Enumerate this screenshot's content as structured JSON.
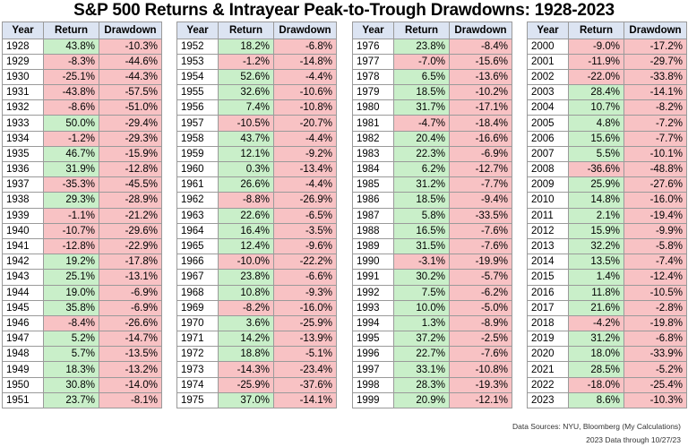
{
  "title": "S&P 500 Returns & Intrayear Peak-to-Trough Drawdowns: 1928-2023",
  "headers": {
    "year": "Year",
    "ret": "Return",
    "dd": "Drawdown"
  },
  "colors": {
    "header": "#dce4f2",
    "positive": "#c9efc9",
    "negative": "#f8c2c4"
  },
  "columns": [
    [
      [
        "1928",
        "43.8%",
        "-10.3%"
      ],
      [
        "1929",
        "-8.3%",
        "-44.6%"
      ],
      [
        "1930",
        "-25.1%",
        "-44.3%"
      ],
      [
        "1931",
        "-43.8%",
        "-57.5%"
      ],
      [
        "1932",
        "-8.6%",
        "-51.0%"
      ],
      [
        "1933",
        "50.0%",
        "-29.4%"
      ],
      [
        "1934",
        "-1.2%",
        "-29.3%"
      ],
      [
        "1935",
        "46.7%",
        "-15.9%"
      ],
      [
        "1936",
        "31.9%",
        "-12.8%"
      ],
      [
        "1937",
        "-35.3%",
        "-45.5%"
      ],
      [
        "1938",
        "29.3%",
        "-28.9%"
      ],
      [
        "1939",
        "-1.1%",
        "-21.2%"
      ],
      [
        "1940",
        "-10.7%",
        "-29.6%"
      ],
      [
        "1941",
        "-12.8%",
        "-22.9%"
      ],
      [
        "1942",
        "19.2%",
        "-17.8%"
      ],
      [
        "1943",
        "25.1%",
        "-13.1%"
      ],
      [
        "1944",
        "19.0%",
        "-6.9%"
      ],
      [
        "1945",
        "35.8%",
        "-6.9%"
      ],
      [
        "1946",
        "-8.4%",
        "-26.6%"
      ],
      [
        "1947",
        "5.2%",
        "-14.7%"
      ],
      [
        "1948",
        "5.7%",
        "-13.5%"
      ],
      [
        "1949",
        "18.3%",
        "-13.2%"
      ],
      [
        "1950",
        "30.8%",
        "-14.0%"
      ],
      [
        "1951",
        "23.7%",
        "-8.1%"
      ]
    ],
    [
      [
        "1952",
        "18.2%",
        "-6.8%"
      ],
      [
        "1953",
        "-1.2%",
        "-14.8%"
      ],
      [
        "1954",
        "52.6%",
        "-4.4%"
      ],
      [
        "1955",
        "32.6%",
        "-10.6%"
      ],
      [
        "1956",
        "7.4%",
        "-10.8%"
      ],
      [
        "1957",
        "-10.5%",
        "-20.7%"
      ],
      [
        "1958",
        "43.7%",
        "-4.4%"
      ],
      [
        "1959",
        "12.1%",
        "-9.2%"
      ],
      [
        "1960",
        "0.3%",
        "-13.4%"
      ],
      [
        "1961",
        "26.6%",
        "-4.4%"
      ],
      [
        "1962",
        "-8.8%",
        "-26.9%"
      ],
      [
        "1963",
        "22.6%",
        "-6.5%"
      ],
      [
        "1964",
        "16.4%",
        "-3.5%"
      ],
      [
        "1965",
        "12.4%",
        "-9.6%"
      ],
      [
        "1966",
        "-10.0%",
        "-22.2%"
      ],
      [
        "1967",
        "23.8%",
        "-6.6%"
      ],
      [
        "1968",
        "10.8%",
        "-9.3%"
      ],
      [
        "1969",
        "-8.2%",
        "-16.0%"
      ],
      [
        "1970",
        "3.6%",
        "-25.9%"
      ],
      [
        "1971",
        "14.2%",
        "-13.9%"
      ],
      [
        "1972",
        "18.8%",
        "-5.1%"
      ],
      [
        "1973",
        "-14.3%",
        "-23.4%"
      ],
      [
        "1974",
        "-25.9%",
        "-37.6%"
      ],
      [
        "1975",
        "37.0%",
        "-14.1%"
      ]
    ],
    [
      [
        "1976",
        "23.8%",
        "-8.4%"
      ],
      [
        "1977",
        "-7.0%",
        "-15.6%"
      ],
      [
        "1978",
        "6.5%",
        "-13.6%"
      ],
      [
        "1979",
        "18.5%",
        "-10.2%"
      ],
      [
        "1980",
        "31.7%",
        "-17.1%"
      ],
      [
        "1981",
        "-4.7%",
        "-18.4%"
      ],
      [
        "1982",
        "20.4%",
        "-16.6%"
      ],
      [
        "1983",
        "22.3%",
        "-6.9%"
      ],
      [
        "1984",
        "6.2%",
        "-12.7%"
      ],
      [
        "1985",
        "31.2%",
        "-7.7%"
      ],
      [
        "1986",
        "18.5%",
        "-9.4%"
      ],
      [
        "1987",
        "5.8%",
        "-33.5%"
      ],
      [
        "1988",
        "16.5%",
        "-7.6%"
      ],
      [
        "1989",
        "31.5%",
        "-7.6%"
      ],
      [
        "1990",
        "-3.1%",
        "-19.9%"
      ],
      [
        "1991",
        "30.2%",
        "-5.7%"
      ],
      [
        "1992",
        "7.5%",
        "-6.2%"
      ],
      [
        "1993",
        "10.0%",
        "-5.0%"
      ],
      [
        "1994",
        "1.3%",
        "-8.9%"
      ],
      [
        "1995",
        "37.2%",
        "-2.5%"
      ],
      [
        "1996",
        "22.7%",
        "-7.6%"
      ],
      [
        "1997",
        "33.1%",
        "-10.8%"
      ],
      [
        "1998",
        "28.3%",
        "-19.3%"
      ],
      [
        "1999",
        "20.9%",
        "-12.1%"
      ]
    ],
    [
      [
        "2000",
        "-9.0%",
        "-17.2%"
      ],
      [
        "2001",
        "-11.9%",
        "-29.7%"
      ],
      [
        "2002",
        "-22.0%",
        "-33.8%"
      ],
      [
        "2003",
        "28.4%",
        "-14.1%"
      ],
      [
        "2004",
        "10.7%",
        "-8.2%"
      ],
      [
        "2005",
        "4.8%",
        "-7.2%"
      ],
      [
        "2006",
        "15.6%",
        "-7.7%"
      ],
      [
        "2007",
        "5.5%",
        "-10.1%"
      ],
      [
        "2008",
        "-36.6%",
        "-48.8%"
      ],
      [
        "2009",
        "25.9%",
        "-27.6%"
      ],
      [
        "2010",
        "14.8%",
        "-16.0%"
      ],
      [
        "2011",
        "2.1%",
        "-19.4%"
      ],
      [
        "2012",
        "15.9%",
        "-9.9%"
      ],
      [
        "2013",
        "32.2%",
        "-5.8%"
      ],
      [
        "2014",
        "13.5%",
        "-7.4%"
      ],
      [
        "2015",
        "1.4%",
        "-12.4%"
      ],
      [
        "2016",
        "11.8%",
        "-10.5%"
      ],
      [
        "2017",
        "21.6%",
        "-2.8%"
      ],
      [
        "2018",
        "-4.2%",
        "-19.8%"
      ],
      [
        "2019",
        "31.2%",
        "-6.8%"
      ],
      [
        "2020",
        "18.0%",
        "-33.9%"
      ],
      [
        "2021",
        "28.5%",
        "-5.2%"
      ],
      [
        "2022",
        "-18.0%",
        "-25.4%"
      ],
      [
        "2023",
        "8.6%",
        "-10.3%"
      ]
    ]
  ],
  "source": "Data Sources: NYU, Bloomberg (My Calculations)",
  "footnote": "2023 Data through 10/27/23"
}
